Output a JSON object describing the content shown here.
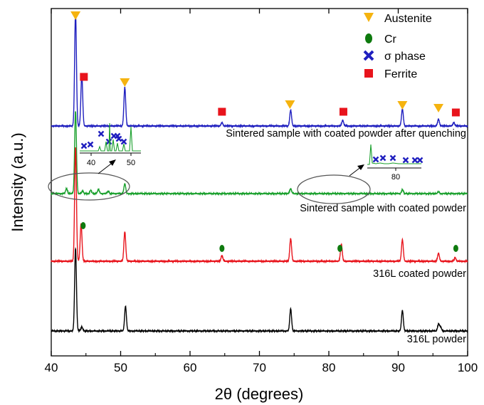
{
  "chart_data": {
    "type": "line",
    "title": "",
    "xlabel": "2θ (degrees)",
    "ylabel": "Intensity (a.u.)",
    "xlim": [
      40,
      100
    ],
    "x_ticks": [
      40,
      50,
      60,
      70,
      80,
      90,
      100
    ],
    "grid": false,
    "legend_position": "top-right",
    "legend": [
      {
        "label": "Austenite",
        "marker": "triangle-down",
        "color": "#f5b30f"
      },
      {
        "label": "Cr",
        "marker": "ellipse",
        "color": "#0e7a0e"
      },
      {
        "label": "σ phase",
        "marker": "x",
        "color": "#1f1fbf"
      },
      {
        "label": "Ferrite",
        "marker": "square",
        "color": "#e8141c"
      }
    ],
    "series": [
      {
        "label": "Sintered sample with coated powder after quenching",
        "color": "#1f1fbf",
        "peaks": [
          [
            43.5,
            1.0
          ],
          [
            44.4,
            0.45
          ],
          [
            50.6,
            0.34
          ],
          [
            64.6,
            0.03
          ],
          [
            74.5,
            0.14
          ],
          [
            82.0,
            0.05
          ],
          [
            90.6,
            0.15
          ],
          [
            95.8,
            0.06
          ],
          [
            98.0,
            0.03
          ]
        ],
        "markers": [
          {
            "type": "Austenite",
            "x": [
              43.5,
              50.6,
              74.4,
              90.6,
              95.8
            ]
          },
          {
            "type": "Ferrite",
            "x": [
              44.7,
              64.6,
              82.1,
              98.3
            ]
          }
        ]
      },
      {
        "label": "Sintered sample with coated powder",
        "color": "#1aa02d",
        "peaks": [
          [
            42.2,
            0.06
          ],
          [
            43.5,
            1.0
          ],
          [
            44.5,
            0.03
          ],
          [
            45.7,
            0.04
          ],
          [
            46.8,
            0.05
          ],
          [
            48.2,
            0.03
          ],
          [
            50.6,
            0.12
          ],
          [
            74.5,
            0.06
          ],
          [
            90.6,
            0.05
          ],
          [
            95.8,
            0.02
          ]
        ],
        "markers": []
      },
      {
        "label": "316L coated powder",
        "color": "#e8141c",
        "peaks": [
          [
            43.5,
            1.0
          ],
          [
            44.3,
            0.33
          ],
          [
            50.6,
            0.26
          ],
          [
            64.6,
            0.05
          ],
          [
            74.5,
            0.2
          ],
          [
            81.8,
            0.15
          ],
          [
            90.6,
            0.19
          ],
          [
            95.8,
            0.07
          ],
          [
            98.2,
            0.03
          ]
        ],
        "markers": [
          {
            "type": "Cr",
            "x": [
              44.6,
              64.6,
              81.6,
              98.3
            ]
          }
        ]
      },
      {
        "label": "316L powder",
        "color": "#000000",
        "peaks": [
          [
            43.5,
            1.0
          ],
          [
            44.4,
            0.05
          ],
          [
            50.7,
            0.3
          ],
          [
            74.5,
            0.27
          ],
          [
            90.6,
            0.25
          ],
          [
            95.8,
            0.08
          ],
          [
            96.1,
            0.05
          ]
        ],
        "markers": []
      }
    ],
    "insets": [
      {
        "x_ticks": [
          40,
          50
        ],
        "markers": [
          {
            "type": "σ phase",
            "count": 8
          }
        ]
      },
      {
        "x_ticks": [
          80
        ],
        "markers": [
          {
            "type": "σ phase",
            "count": 6
          }
        ]
      }
    ]
  }
}
